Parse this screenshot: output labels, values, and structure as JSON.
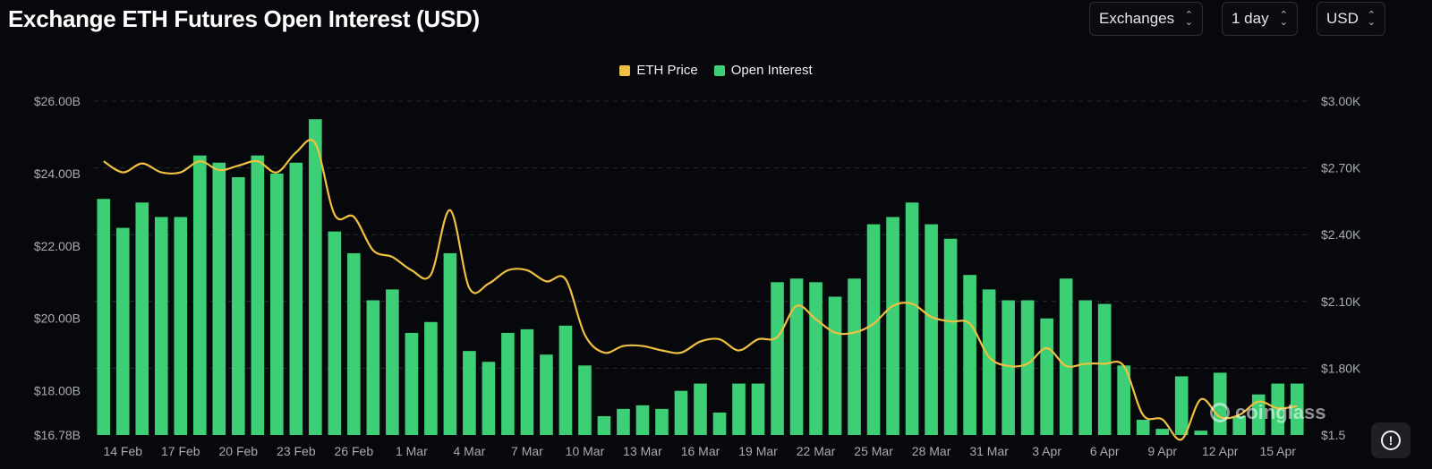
{
  "header": {
    "title": "Exchange ETH Futures Open Interest (USD)",
    "controls": [
      {
        "label": "Exchanges",
        "name": "exchanges-select"
      },
      {
        "label": "1 day",
        "name": "interval-select"
      },
      {
        "label": "USD",
        "name": "currency-select"
      }
    ]
  },
  "watermark": {
    "text": "coinglass"
  },
  "colors": {
    "open_interest": "#3ccf75",
    "eth_price": "#f0c040",
    "background": "#07080c",
    "grid": "#2a2d34"
  },
  "chart_data": {
    "type": "bar",
    "legend": {
      "placement": "top-center",
      "entries": [
        "ETH Price",
        "Open Interest"
      ]
    },
    "grid": true,
    "x_ticks": [
      "14 Feb",
      "17 Feb",
      "20 Feb",
      "23 Feb",
      "26 Feb",
      "1 Mar",
      "4 Mar",
      "7 Mar",
      "10 Mar",
      "13 Mar",
      "16 Mar",
      "19 Mar",
      "22 Mar",
      "25 Mar",
      "28 Mar",
      "31 Mar",
      "3 Apr",
      "6 Apr",
      "9 Apr",
      "12 Apr",
      "15 Apr"
    ],
    "y_left": {
      "ticks": [
        "$16.78B",
        "$18.00B",
        "$20.00B",
        "$22.00B",
        "$24.00B",
        "$26.00B"
      ],
      "min": 16.78,
      "max": 26.0,
      "unit": "B"
    },
    "y_right": {
      "ticks": [
        "$1.5",
        "$1.80K",
        "$2.10K",
        "$2.40K",
        "$2.70K",
        "$3.00K"
      ],
      "min": 1500,
      "max": 3000
    },
    "dates": [
      "13 Feb",
      "14 Feb",
      "15 Feb",
      "16 Feb",
      "17 Feb",
      "18 Feb",
      "19 Feb",
      "20 Feb",
      "21 Feb",
      "22 Feb",
      "23 Feb",
      "24 Feb",
      "25 Feb",
      "26 Feb",
      "27 Feb",
      "28 Feb",
      "1 Mar",
      "2 Mar",
      "3 Mar",
      "4 Mar",
      "5 Mar",
      "6 Mar",
      "7 Mar",
      "8 Mar",
      "9 Mar",
      "10 Mar",
      "11 Mar",
      "12 Mar",
      "13 Mar",
      "14 Mar",
      "15 Mar",
      "16 Mar",
      "17 Mar",
      "18 Mar",
      "19 Mar",
      "20 Mar",
      "21 Mar",
      "22 Mar",
      "23 Mar",
      "24 Mar",
      "25 Mar",
      "26 Mar",
      "27 Mar",
      "28 Mar",
      "29 Mar",
      "30 Mar",
      "31 Mar",
      "1 Apr",
      "2 Apr",
      "3 Apr",
      "4 Apr",
      "5 Apr",
      "6 Apr",
      "7 Apr",
      "8 Apr",
      "9 Apr",
      "10 Apr",
      "11 Apr",
      "12 Apr",
      "13 Apr",
      "14 Apr",
      "15 Apr",
      "16 Apr"
    ],
    "series": [
      {
        "name": "Open Interest",
        "axis": "left",
        "type": "bar",
        "values": [
          23.3,
          22.5,
          23.2,
          22.8,
          22.8,
          24.5,
          24.3,
          23.9,
          24.5,
          24.0,
          24.3,
          25.5,
          22.4,
          21.8,
          20.5,
          20.8,
          19.6,
          19.9,
          21.8,
          19.1,
          18.8,
          19.6,
          19.7,
          19.0,
          19.8,
          18.7,
          17.3,
          17.5,
          17.6,
          17.5,
          18.0,
          18.2,
          17.4,
          18.2,
          18.2,
          21.0,
          21.1,
          21.0,
          20.6,
          21.1,
          22.6,
          22.8,
          23.2,
          22.6,
          22.2,
          21.2,
          20.8,
          20.5,
          20.5,
          20.0,
          21.1,
          20.5,
          20.4,
          18.7,
          17.2,
          16.95,
          18.4,
          16.9,
          18.5,
          17.3,
          17.9,
          18.2,
          18.2
        ]
      },
      {
        "name": "ETH Price",
        "axis": "right",
        "type": "line",
        "values": [
          2730,
          2680,
          2720,
          2680,
          2680,
          2730,
          2690,
          2710,
          2730,
          2680,
          2770,
          2810,
          2490,
          2480,
          2330,
          2300,
          2240,
          2220,
          2510,
          2160,
          2180,
          2240,
          2240,
          2190,
          2200,
          1950,
          1870,
          1900,
          1900,
          1880,
          1870,
          1920,
          1930,
          1880,
          1930,
          1940,
          2080,
          2020,
          1960,
          1960,
          2000,
          2080,
          2090,
          2030,
          2010,
          2000,
          1850,
          1810,
          1820,
          1890,
          1810,
          1820,
          1820,
          1810,
          1590,
          1570,
          1480,
          1660,
          1580,
          1590,
          1650,
          1620,
          1630
        ]
      }
    ]
  }
}
